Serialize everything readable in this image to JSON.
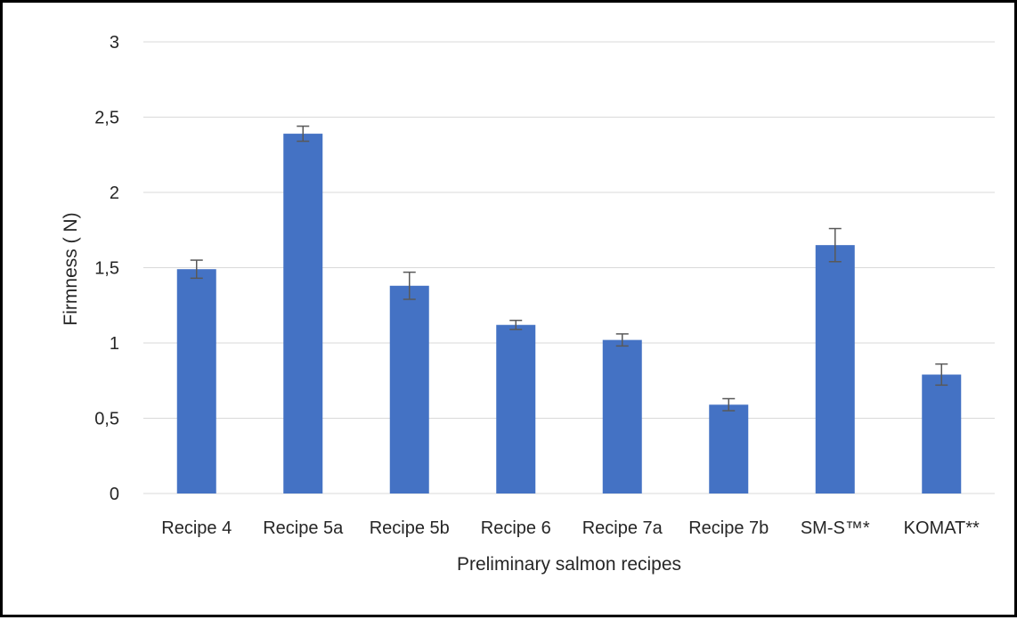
{
  "chart_data": {
    "type": "bar",
    "categories": [
      "Recipe 4",
      "Recipe 5a",
      "Recipe 5b",
      "Recipe 6",
      "Recipe 7a",
      "Recipe 7b",
      "SM-S™*",
      "KOMAT**"
    ],
    "values": [
      1.49,
      2.39,
      1.38,
      1.12,
      1.02,
      0.59,
      1.65,
      0.79
    ],
    "errors": [
      0.06,
      0.05,
      0.09,
      0.03,
      0.04,
      0.04,
      0.11,
      0.07
    ],
    "ylabel": "Firmness ( N)",
    "xlabel": "Preliminary salmon recipes",
    "ylim": [
      0,
      3
    ],
    "yticks": [
      "0",
      "0,5",
      "1",
      "1,5",
      "2",
      "2,5",
      "3"
    ],
    "grid": true,
    "bar_color": "#4472C4",
    "gridline_color": "#D9D9D9",
    "error_bar_color": "#595959"
  }
}
